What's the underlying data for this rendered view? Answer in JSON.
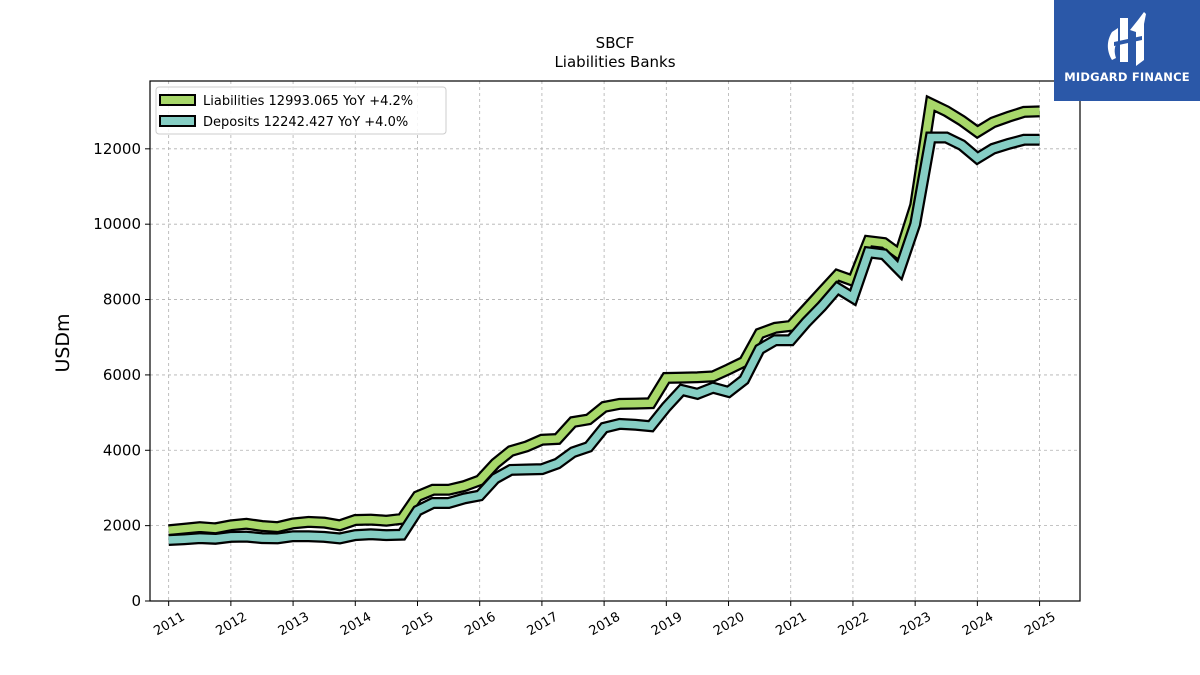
{
  "chart_data": {
    "type": "line",
    "title": "SBCF",
    "subtitle": "Liabilities Banks",
    "xlabel": "",
    "ylabel": "USDm",
    "xlim": [
      2010.7,
      2025.65
    ],
    "ylim": [
      0,
      13800
    ],
    "yticks": [
      0,
      2000,
      4000,
      6000,
      8000,
      10000,
      12000
    ],
    "xticks": [
      2011,
      2012,
      2013,
      2014,
      2015,
      2016,
      2017,
      2018,
      2019,
      2020,
      2021,
      2022,
      2023,
      2024,
      2025
    ],
    "grid": true,
    "legend_position": "top-left",
    "series": [
      {
        "name": "Liabilities",
        "legend_label": "Liabilities  12993.065 YoY +4.2%",
        "color": "#a8d86a",
        "x": [
          2011.0,
          2011.25,
          2011.5,
          2011.75,
          2012.0,
          2012.25,
          2012.5,
          2012.75,
          2013.0,
          2013.25,
          2013.5,
          2013.75,
          2014.0,
          2014.25,
          2014.5,
          2014.75,
          2015.0,
          2015.25,
          2015.5,
          2015.75,
          2016.0,
          2016.25,
          2016.5,
          2016.75,
          2017.0,
          2017.25,
          2017.5,
          2017.75,
          2018.0,
          2018.25,
          2018.5,
          2018.75,
          2019.0,
          2019.25,
          2019.5,
          2019.75,
          2020.0,
          2020.25,
          2020.5,
          2020.75,
          2021.0,
          2021.25,
          2021.5,
          2021.75,
          2022.0,
          2022.25,
          2022.5,
          2022.75,
          2023.0,
          2023.25,
          2023.5,
          2023.75,
          2024.0,
          2024.25,
          2024.5,
          2024.75,
          2025.0
        ],
        "values": [
          1880,
          1920,
          1960,
          1930,
          2010,
          2050,
          1990,
          1960,
          2060,
          2100,
          2080,
          2010,
          2150,
          2160,
          2130,
          2180,
          2780,
          2950,
          2950,
          3050,
          3200,
          3650,
          3980,
          4100,
          4280,
          4300,
          4750,
          4820,
          5150,
          5230,
          5240,
          5250,
          5920,
          5930,
          5940,
          5960,
          6150,
          6350,
          7100,
          7250,
          7300,
          7750,
          8200,
          8650,
          8500,
          9550,
          9500,
          9200,
          10500,
          13200,
          13000,
          12750,
          12450,
          12700,
          12850,
          12980,
          12993
        ]
      },
      {
        "name": "Deposits",
        "legend_label": "Deposits  12242.427 YoY +4.0%",
        "color": "#86cec4",
        "x": [
          2011.0,
          2011.25,
          2011.5,
          2011.75,
          2012.0,
          2012.25,
          2012.5,
          2012.75,
          2013.0,
          2013.25,
          2013.5,
          2013.75,
          2014.0,
          2014.25,
          2014.5,
          2014.75,
          2015.0,
          2015.25,
          2015.5,
          2015.75,
          2016.0,
          2016.25,
          2016.5,
          2016.75,
          2017.0,
          2017.25,
          2017.5,
          2017.75,
          2018.0,
          2018.25,
          2018.5,
          2018.75,
          2019.0,
          2019.25,
          2019.5,
          2019.75,
          2020.0,
          2020.25,
          2020.5,
          2020.75,
          2021.0,
          2021.25,
          2021.5,
          2021.75,
          2022.0,
          2022.25,
          2022.5,
          2022.75,
          2023.0,
          2023.25,
          2023.5,
          2023.75,
          2024.0,
          2024.25,
          2024.5,
          2024.75,
          2025.0
        ],
        "values": [
          1620,
          1640,
          1670,
          1650,
          1700,
          1710,
          1670,
          1660,
          1720,
          1720,
          1700,
          1660,
          1750,
          1770,
          1750,
          1760,
          2400,
          2600,
          2600,
          2720,
          2800,
          3250,
          3480,
          3490,
          3500,
          3650,
          3950,
          4090,
          4600,
          4700,
          4680,
          4640,
          5150,
          5600,
          5500,
          5660,
          5550,
          5870,
          6680,
          6920,
          6920,
          7400,
          7820,
          8300,
          8050,
          9250,
          9200,
          8780,
          10000,
          12300,
          12300,
          12100,
          11750,
          12000,
          12130,
          12240,
          12242
        ]
      }
    ]
  },
  "logo": {
    "text": "MIDGARD FINANCE",
    "background": "#2b58a8"
  }
}
